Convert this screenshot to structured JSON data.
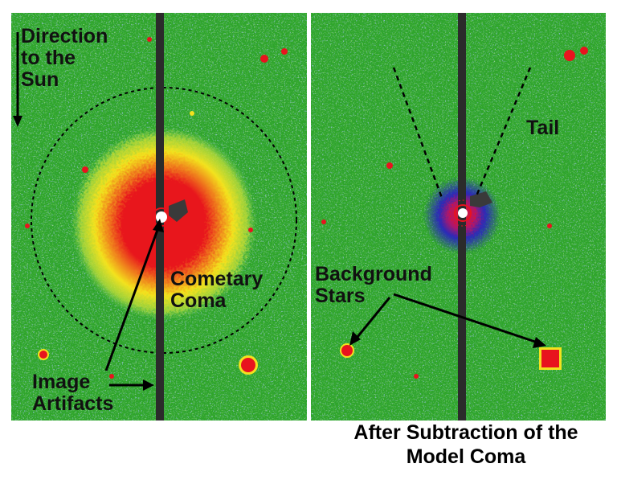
{
  "left_panel": {
    "label_direction": "Direction\nto the\nSun",
    "label_coma": "Cometary\nComa",
    "label_artifacts": "Image\nArtifacts"
  },
  "right_panel": {
    "label_tail": "Tail",
    "label_stars": "Background\nStars"
  },
  "caption": {
    "line1": "After Subtraction of the",
    "line2": "Model Coma"
  },
  "colors": {
    "background_green": "#2fa52c",
    "noise_blue": "#4f86c6",
    "noise_light_green": "#7fd45a",
    "coma_yellow": "#f3e21e",
    "coma_red": "#e8131e",
    "artifact_bar": "#2b2b2b",
    "annotation": "#000000"
  }
}
